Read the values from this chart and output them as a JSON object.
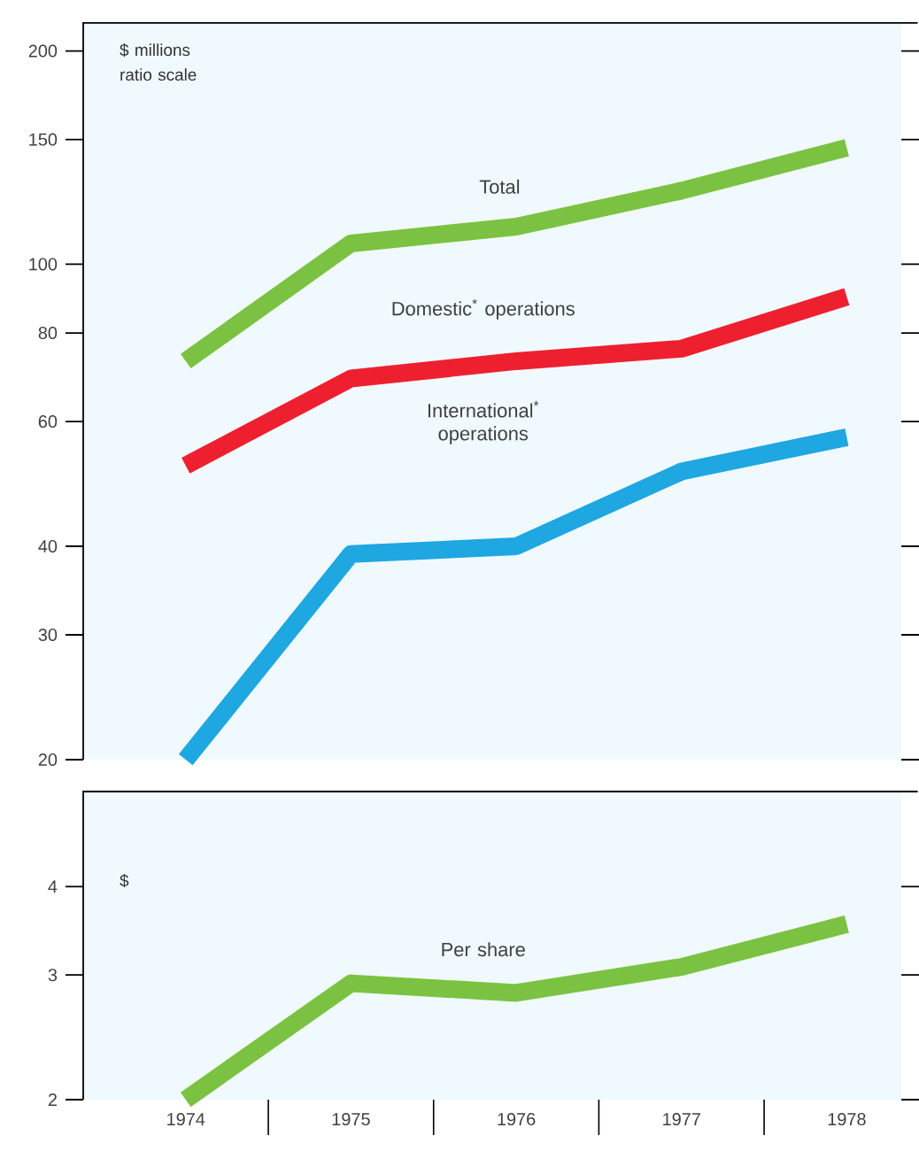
{
  "chart_data": [
    {
      "type": "line",
      "ylabel": "$ millions ratio scale",
      "categories": [
        "1974",
        "1975",
        "1976",
        "1977",
        "1978"
      ],
      "log": "y",
      "ylim": [
        20,
        219
      ],
      "yticks": [
        20,
        30,
        40,
        60,
        80,
        100,
        150,
        200
      ],
      "tick_labels": "y",
      "line_style": "solid",
      "marker": "none",
      "series": [
        {
          "name": "Total",
          "color": "#7cc242",
          "values": [
            73,
            107,
            113,
            127,
            146
          ]
        },
        {
          "name": "Domestic$^{*}$ operations",
          "color": "#ee2030",
          "values": [
            52,
            69,
            73,
            76,
            90
          ]
        },
        {
          "name": "International$^{*}$ operations",
          "color": "#1ea7e1",
          "values": [
            20,
            39,
            40,
            51,
            57
          ]
        }
      ]
    },
    {
      "type": "line",
      "ylabel": "$",
      "categories": [
        "1974",
        "1975",
        "1976",
        "1977",
        "1978"
      ],
      "log": "y",
      "ylim": [
        2,
        5.45
      ],
      "yticks": [
        2,
        3,
        4
      ],
      "line_style": "solid",
      "marker": "none",
      "series": [
        {
          "name": "Per share",
          "color": "#7cc242",
          "values": [
            2.0,
            2.92,
            2.83,
            3.08,
            3.54
          ]
        }
      ]
    }
  ]
}
